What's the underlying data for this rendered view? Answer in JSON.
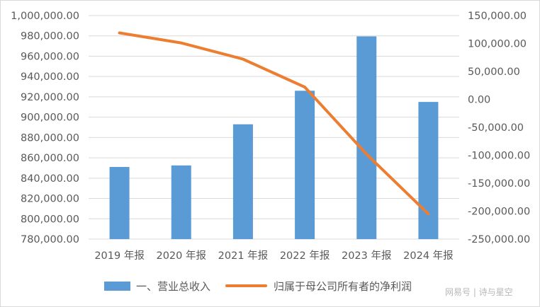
{
  "chart_data": {
    "type": "bar",
    "categories": [
      "2019 年报",
      "2020 年报",
      "2021 年报",
      "2022 年报",
      "2023 年报",
      "2024 年报"
    ],
    "series": [
      {
        "name": "一、营业总收入",
        "type": "bar",
        "axis": "left",
        "color": "#5b9bd5",
        "values": [
          851000,
          852500,
          893000,
          926000,
          979500,
          915000
        ]
      },
      {
        "name": "归属于母公司所有者的净利润",
        "type": "line",
        "axis": "right",
        "color": "#ed7d31",
        "values": [
          119000,
          101000,
          72000,
          22000,
          -98000,
          -205000
        ]
      }
    ],
    "y_left": {
      "min": 780000,
      "max": 1000000,
      "step": 20000,
      "tick_labels": [
        "780,000.00",
        "800,000.00",
        "820,000.00",
        "840,000.00",
        "860,000.00",
        "880,000.00",
        "900,000.00",
        "920,000.00",
        "940,000.00",
        "960,000.00",
        "980,000.00",
        "1,000,000.00"
      ]
    },
    "y_right": {
      "min": -250000,
      "max": 150000,
      "step": 50000,
      "tick_labels": [
        "-250,000.00",
        "-200,000.00",
        "-150,000.00",
        "-100,000.00",
        "-50,000.00",
        "0.00",
        "50,000.00",
        "100,000.00",
        "150,000.00"
      ]
    },
    "grid": true,
    "legend": "bottom",
    "watermark": "网易号 | 诗与星空"
  }
}
